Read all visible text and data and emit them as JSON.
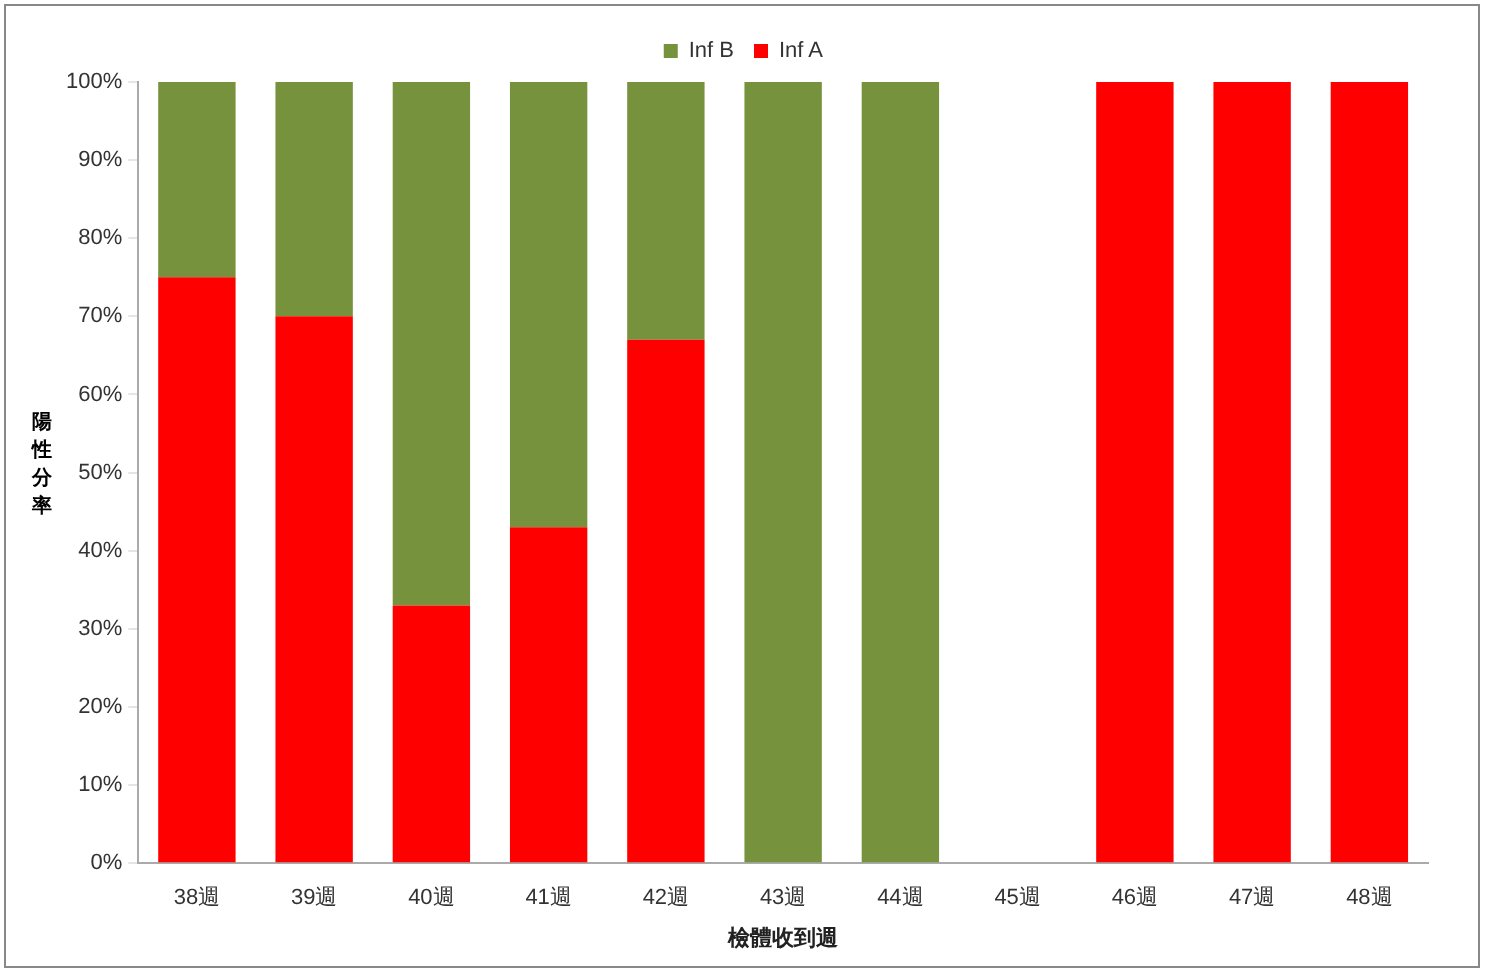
{
  "chart_data": {
    "type": "bar",
    "stacked": true,
    "xlabel": "檢體收到週",
    "ylabel": "陽性分率",
    "categories": [
      "38週",
      "39週",
      "40週",
      "41週",
      "42週",
      "43週",
      "44週",
      "45週",
      "46週",
      "47週",
      "48週"
    ],
    "series": [
      {
        "name": "Inf A",
        "color": "#ff0000",
        "values": [
          75,
          70,
          33,
          43,
          67,
          0,
          0,
          null,
          100,
          100,
          100
        ]
      },
      {
        "name": "Inf B",
        "color": "#76923c",
        "values": [
          25,
          30,
          67,
          57,
          33,
          100,
          100,
          null,
          0,
          0,
          0
        ]
      }
    ],
    "ylim": [
      0,
      100
    ],
    "yticks": [
      {
        "value": 0,
        "label": "0%"
      },
      {
        "value": 10,
        "label": "10%"
      },
      {
        "value": 20,
        "label": "20%"
      },
      {
        "value": 30,
        "label": "30%"
      },
      {
        "value": 40,
        "label": "40%"
      },
      {
        "value": 50,
        "label": "50%"
      },
      {
        "value": 60,
        "label": "60%"
      },
      {
        "value": 70,
        "label": "70%"
      },
      {
        "value": 80,
        "label": "80%"
      },
      {
        "value": 90,
        "label": "90%"
      },
      {
        "value": 100,
        "label": "100%"
      }
    ],
    "grid": false,
    "legend": "top"
  }
}
